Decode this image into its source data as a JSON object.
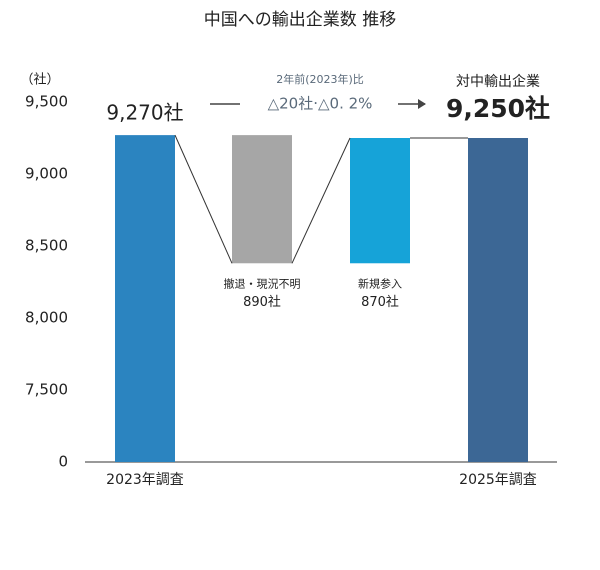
{
  "chart_data": {
    "type": "waterfall",
    "title": "中国への輸出企業数  推移",
    "y_unit_label": "（社）",
    "categories": [
      "2023年調査",
      "撤退・現況不明",
      "新規参入",
      "2025年調査"
    ],
    "values": [
      9270,
      890,
      870,
      9250
    ],
    "value_labels": [
      "9,270社",
      "890社",
      "870社",
      "9,250社"
    ],
    "measure": [
      "total",
      "decrease",
      "increase",
      "total"
    ],
    "colors": [
      "#2b84c0",
      "#a6a6a6",
      "#16a3d8",
      "#3c6795"
    ],
    "annotations": {
      "comparison_title": "2年前(2023年)比",
      "comparison_value": "△20社·△0. 2%",
      "final_title": "対中輸出企業"
    },
    "ylim": [
      0,
      9500
    ],
    "yticks": [
      0,
      {
        "value": 7500,
        "label": "7,500"
      },
      {
        "value": 8000,
        "label": "8,000"
      },
      {
        "value": 8500,
        "label": "8,500"
      },
      {
        "value": 9000,
        "label": "9,000"
      },
      {
        "value": 9500,
        "label": "9,500"
      }
    ]
  }
}
